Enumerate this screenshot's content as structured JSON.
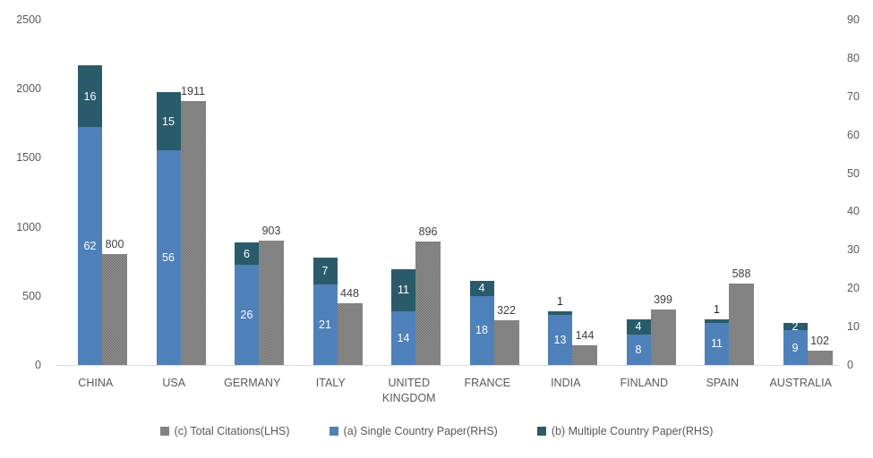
{
  "chart_data": {
    "type": "bar",
    "title": "",
    "categories": [
      "CHINA",
      "USA",
      "GERMANY",
      "ITALY",
      "UNITED KINGDOM",
      "FRANCE",
      "INDIA",
      "FINLAND",
      "SPAIN",
      "AUSTRALIA"
    ],
    "series": [
      {
        "name": "(c) Total Citations(LHS)",
        "axis": "left",
        "style": "speckled",
        "color": "#7f7f7f",
        "values": [
          800,
          1911,
          903,
          448,
          896,
          322,
          144,
          399,
          588,
          102
        ]
      },
      {
        "name": "(a) Single Country Paper(RHS)",
        "axis": "right",
        "style": "solid",
        "color": "#4e80ba",
        "values": [
          62,
          56,
          26,
          21,
          14,
          18,
          13,
          8,
          11,
          9
        ]
      },
      {
        "name": "(b) Multiple Country Paper(RHS)",
        "axis": "right",
        "style": "solid",
        "color": "#2a5b6b",
        "values": [
          16,
          15,
          6,
          7,
          11,
          4,
          1,
          4,
          1,
          2
        ]
      }
    ],
    "left_axis": {
      "min": 0,
      "max": 2500,
      "step": 500,
      "ticks": [
        0,
        500,
        1000,
        1500,
        2000,
        2500
      ]
    },
    "right_axis": {
      "min": 0,
      "max": 90,
      "step": 10,
      "ticks": [
        0,
        10,
        20,
        30,
        40,
        50,
        60,
        70,
        80,
        90
      ]
    },
    "legend": {
      "position": "bottom",
      "items": [
        "(c) Total Citations(LHS)",
        "(a) Single Country Paper(RHS)",
        "(b) Multiple Country Paper(RHS)"
      ]
    },
    "grid": false,
    "data_labels": true,
    "colors": {
      "single_country": "#4e80ba",
      "multiple_country": "#2a5b6b",
      "citations": "#7f7f7f",
      "axis_text": "#595959",
      "citation_label_text": "#3f3f3f",
      "outside_label_text": "#262626",
      "axis_line": "#d9d9d9"
    }
  }
}
